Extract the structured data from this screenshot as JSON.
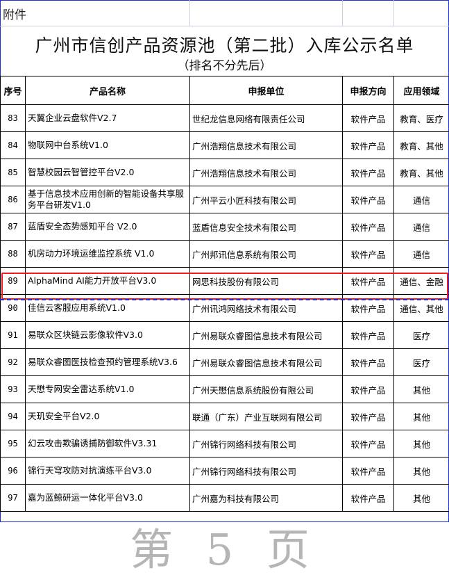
{
  "attachment_label": "附件",
  "title": "广州市信创产品资源池（第二批）入库公示名单",
  "subtitle": "（排名不分先后）",
  "columns": [
    "序号",
    "产品名称",
    "申报单位",
    "申报方向",
    "应用领域"
  ],
  "rows": [
    {
      "no": "83",
      "name": "天翼企业云盘软件V2.7",
      "org": "世纪龙信息网络有限责任公司",
      "dir": "软件产品",
      "field": "教育、医疗"
    },
    {
      "no": "84",
      "name": "物联网中台系统V1.0",
      "org": "广州浩翔信息技术有限公司",
      "dir": "软件产品",
      "field": "教育、其他"
    },
    {
      "no": "85",
      "name": "智慧校园云智管控平台V2.0",
      "org": "广州浩翔信息技术有限公司",
      "dir": "软件产品",
      "field": "教育、其他"
    },
    {
      "no": "86",
      "name": "基于信息技术应用创新的智能设备共享服务平台研发V1.0",
      "org": "广州平云小匠科技有限公司",
      "dir": "软件产品",
      "field": "通信"
    },
    {
      "no": "87",
      "name": "蓝盾安全态势感知平台 V2.0",
      "org": "蓝盾信息安全技术有限公司",
      "dir": "软件产品",
      "field": "通信"
    },
    {
      "no": "88",
      "name": "机房动力环境运维监控系统 V1.0",
      "org": "广州邦讯信息系统有限公司",
      "dir": "软件产品",
      "field": "通信"
    },
    {
      "no": "89",
      "name": "AlphaMind AI能力开放平台V3.0",
      "org": "网思科技股份有限公司",
      "dir": "软件产品",
      "field": "通信、金融"
    },
    {
      "no": "90",
      "name": "佳信云客服应用系统V1.0",
      "org": "广州讯鸿网络技术有限公司",
      "dir": "软件产品",
      "field": "通信、其他"
    },
    {
      "no": "91",
      "name": "易联众区块链云影像软件V3.0",
      "org": "广州易联众睿图信息技术有限公司",
      "dir": "软件产品",
      "field": "医疗"
    },
    {
      "no": "92",
      "name": "易联众睿图医技检查预约管理系统V3.6",
      "org": "广州易联众睿图信息技术有限公司",
      "dir": "软件产品",
      "field": "医疗"
    },
    {
      "no": "93",
      "name": "天懋专网安全雷达系统V1.0",
      "org": "广州天懋信息系统股份有限公司",
      "dir": "软件产品",
      "field": "其他"
    },
    {
      "no": "94",
      "name": "天玑安全平台V2.0",
      "org": "联通（广东）产业互联网有限公司",
      "dir": "软件产品",
      "field": "其他"
    },
    {
      "no": "95",
      "name": "幻云攻击欺骗诱捕防御软件V3.31",
      "org": "广州锦行网络科技有限公司",
      "dir": "软件产品",
      "field": "其他"
    },
    {
      "no": "96",
      "name": "锦行天穹攻防对抗演练平台V3.0",
      "org": "广州锦行网络科技有限公司",
      "dir": "软件产品",
      "field": "其他"
    },
    {
      "no": "97",
      "name": "嘉为蓝鲸研运一体化平台V3.0",
      "org": "广州嘉为科技有限公司",
      "dir": "软件产品",
      "field": "其他"
    }
  ],
  "highlighted_row_no": "89",
  "watermark": "第 5 页",
  "colors": {
    "highlight_border": "#ee1c1c",
    "frame_border": "#1f2fd6"
  }
}
